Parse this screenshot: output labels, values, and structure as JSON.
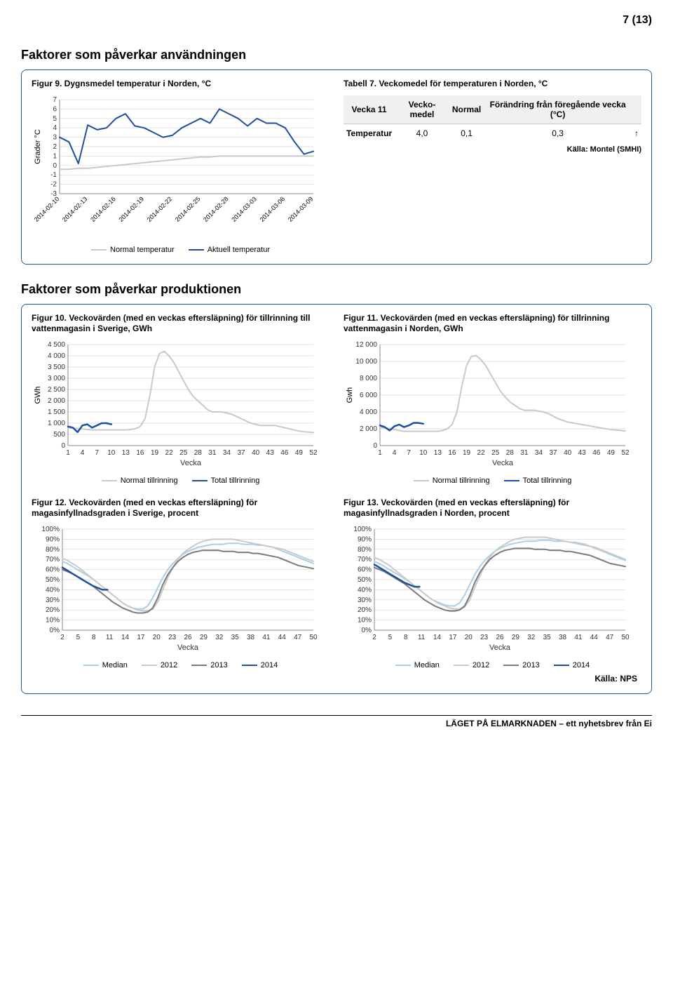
{
  "page_number": "7 (13)",
  "section1_title": "Faktorer som påverkar användningen",
  "section2_title": "Faktorer som påverkar produktionen",
  "footer": "LÄGET PÅ ELMARKNADEN – ett nyhetsbrev från Ei",
  "colors": {
    "panel_border": "#2a5c8a",
    "grey_light": "#c9c9c9",
    "grey_mid": "#9b9b9b",
    "grey_dark": "#7a7a7a",
    "blue_light": "#a9cfe8",
    "blue_dark": "#1f4e9c",
    "grid": "#d8d8d8",
    "axis": "#888888"
  },
  "fig9": {
    "title": "Figur 9. Dygnsmedel temperatur i Norden, °C",
    "type": "line",
    "ylabel": "Grader °C",
    "ylim": [
      -3,
      7
    ],
    "ytick_step": 1,
    "x_labels": [
      "2014-02-10",
      "2014-02-13",
      "2014-02-16",
      "2014-02-19",
      "2014-02-22",
      "2014-02-25",
      "2014-02-28",
      "2014-03-03",
      "2014-03-06",
      "2014-03-09"
    ],
    "series": [
      {
        "name": "Normal temperatur",
        "color": "#c9c9c9",
        "width": 2,
        "y": [
          -0.4,
          -0.4,
          -0.3,
          -0.3,
          -0.2,
          -0.1,
          0.0,
          0.1,
          0.2,
          0.3,
          0.4,
          0.5,
          0.6,
          0.7,
          0.8,
          0.9,
          0.9,
          1.0,
          1.0,
          1.0,
          1.0,
          1.0,
          1.0,
          1.0,
          1.0,
          1.0,
          1.0,
          1.0
        ]
      },
      {
        "name": "Aktuell temperatur",
        "color": "#1f4e9c",
        "width": 2,
        "y": [
          3.0,
          2.5,
          0.2,
          4.3,
          3.8,
          4.0,
          5.0,
          5.5,
          4.2,
          4.0,
          3.5,
          3.0,
          3.2,
          4.0,
          4.5,
          5.0,
          4.5,
          6.0,
          5.5,
          5.0,
          4.2,
          5.0,
          4.5,
          4.5,
          4.0,
          2.5,
          1.2,
          1.5
        ]
      }
    ],
    "legend": [
      "Normal temperatur",
      "Aktuell temperatur"
    ]
  },
  "tab7": {
    "title": "Tabell 7. Veckomedel för temperaturen i Norden, °C",
    "headers": [
      "Vecka 11",
      "Vecko-medel",
      "Normal",
      "Förändring från föregående vecka (°C)",
      ""
    ],
    "row_label": "Temperatur",
    "row": [
      "4,0",
      "0,1",
      "0,3",
      "↑"
    ],
    "source": "Källa: Montel (SMHI)"
  },
  "fig10": {
    "title": "Figur 10. Veckovärden (med en veckas eftersläpning) för tillrinning till vattenmagasin i Sverige, GWh",
    "type": "line",
    "ylabel": "GWh",
    "ylim": [
      0,
      4500
    ],
    "ytick_step": 500,
    "xlabel": "Vecka",
    "x_ticks": [
      1,
      4,
      7,
      10,
      13,
      16,
      19,
      22,
      25,
      28,
      31,
      34,
      37,
      40,
      43,
      46,
      49,
      52
    ],
    "series": [
      {
        "name": "Normal tillrinning",
        "color": "#c9c9c9",
        "width": 2,
        "y": [
          800,
          780,
          760,
          740,
          720,
          700,
          700,
          700,
          700,
          700,
          700,
          700,
          700,
          720,
          750,
          850,
          1200,
          2200,
          3500,
          4100,
          4200,
          4000,
          3700,
          3300,
          2900,
          2500,
          2200,
          2000,
          1800,
          1600,
          1500,
          1500,
          1500,
          1450,
          1400,
          1300,
          1200,
          1100,
          1000,
          950,
          900,
          900,
          900,
          900,
          850,
          800,
          750,
          700,
          650,
          620,
          600,
          580
        ]
      },
      {
        "name": "Total tillrinning",
        "color": "#1f4e9c",
        "width": 2.5,
        "y": [
          850,
          800,
          600,
          900,
          950,
          800,
          900,
          1000,
          1000,
          950
        ]
      }
    ],
    "legend": [
      "Normal tillrinning",
      "Total tillrinning"
    ]
  },
  "fig11": {
    "title": "Figur 11. Veckovärden (med en veckas eftersläpning) för tillrinning vattenmagasin i Norden, GWh",
    "type": "line",
    "ylabel": "Gwh",
    "ylim": [
      0,
      12000
    ],
    "ytick_step": 2000,
    "xlabel": "Vecka",
    "x_ticks": [
      1,
      4,
      7,
      10,
      13,
      16,
      19,
      22,
      25,
      28,
      31,
      34,
      37,
      40,
      43,
      46,
      49,
      52
    ],
    "series": [
      {
        "name": "Normal tillrinning",
        "color": "#c9c9c9",
        "width": 2,
        "y": [
          2200,
          2100,
          2000,
          1900,
          1800,
          1700,
          1700,
          1700,
          1700,
          1700,
          1700,
          1700,
          1700,
          1800,
          2000,
          2500,
          4000,
          7000,
          9500,
          10600,
          10700,
          10200,
          9500,
          8500,
          7500,
          6500,
          5800,
          5200,
          4800,
          4400,
          4200,
          4200,
          4200,
          4100,
          4000,
          3800,
          3500,
          3200,
          3000,
          2800,
          2700,
          2600,
          2500,
          2400,
          2300,
          2200,
          2100,
          2000,
          1900,
          1850,
          1800,
          1750
        ]
      },
      {
        "name": "Total tillrinning",
        "color": "#1f4e9c",
        "width": 2.5,
        "y": [
          2400,
          2200,
          1800,
          2300,
          2500,
          2200,
          2400,
          2700,
          2700,
          2600
        ]
      }
    ],
    "legend": [
      "Normal tillrinning",
      "Total tillrinning"
    ]
  },
  "fig12": {
    "title": "Figur 12. Veckovärden (med en veckas eftersläpning) för magasinfyllnadsgraden i Sverige, procent",
    "type": "line",
    "ylim": [
      0,
      100
    ],
    "ytick_step": 10,
    "ytick_suffix": "%",
    "xlabel": "Vecka",
    "x_ticks": [
      2,
      5,
      8,
      11,
      14,
      17,
      20,
      23,
      26,
      29,
      32,
      35,
      38,
      41,
      44,
      47,
      50
    ],
    "series": [
      {
        "name": "Median",
        "color": "#a9cfe8",
        "width": 2,
        "y": [
          68,
          66,
          63,
          60,
          57,
          54,
          51,
          47,
          43,
          39,
          35,
          31,
          27,
          24,
          22,
          21,
          21,
          24,
          32,
          42,
          52,
          60,
          66,
          71,
          75,
          78,
          80,
          82,
          83,
          84,
          85,
          85,
          85,
          86,
          86,
          86,
          85,
          85,
          85,
          84,
          84,
          83,
          82,
          80,
          78,
          76,
          74,
          72,
          70,
          68,
          66
        ]
      },
      {
        "name": "2012",
        "color": "#c9c9c9",
        "width": 2,
        "y": [
          71,
          69,
          66,
          63,
          59,
          55,
          51,
          47,
          43,
          39,
          35,
          31,
          27,
          24,
          22,
          20,
          19,
          19,
          21,
          28,
          40,
          52,
          62,
          70,
          76,
          80,
          83,
          86,
          88,
          89,
          90,
          90,
          90,
          90,
          90,
          89,
          88,
          87,
          86,
          85,
          84,
          83,
          82,
          81,
          80,
          78,
          76,
          74,
          72,
          70,
          68
        ]
      },
      {
        "name": "2013",
        "color": "#7a7a7a",
        "width": 2,
        "y": [
          60,
          58,
          56,
          53,
          50,
          47,
          44,
          40,
          36,
          32,
          28,
          25,
          22,
          20,
          18,
          17,
          17,
          18,
          22,
          32,
          45,
          55,
          62,
          68,
          72,
          75,
          77,
          78,
          79,
          79,
          79,
          79,
          78,
          78,
          78,
          77,
          77,
          77,
          76,
          76,
          75,
          74,
          73,
          72,
          70,
          68,
          66,
          64,
          63,
          62,
          61
        ]
      },
      {
        "name": "2014",
        "color": "#1f4e9c",
        "width": 2.5,
        "y": [
          62,
          59,
          56,
          53,
          50,
          47,
          44,
          42,
          40,
          40
        ]
      }
    ],
    "legend": [
      "Median",
      "2012",
      "2013",
      "2014"
    ]
  },
  "fig13": {
    "title": "Figur 13. Veckovärden (med en veckas eftersläpning) för magasinfyllnadsgraden i Norden, procent",
    "type": "line",
    "ylim": [
      0,
      100
    ],
    "ytick_step": 10,
    "ytick_suffix": "%",
    "xlabel": "Vecka",
    "x_ticks": [
      2,
      5,
      8,
      11,
      14,
      17,
      20,
      23,
      26,
      29,
      32,
      35,
      38,
      41,
      44,
      47,
      50
    ],
    "series": [
      {
        "name": "Median",
        "color": "#a9cfe8",
        "width": 2,
        "y": [
          68,
          66,
          63,
          60,
          57,
          54,
          51,
          48,
          44,
          40,
          36,
          32,
          29,
          27,
          25,
          24,
          24,
          27,
          35,
          45,
          55,
          63,
          69,
          74,
          78,
          81,
          83,
          85,
          86,
          87,
          88,
          88,
          88,
          89,
          89,
          89,
          88,
          88,
          88,
          87,
          87,
          86,
          85,
          83,
          81,
          79,
          77,
          75,
          73,
          71,
          69
        ]
      },
      {
        "name": "2012",
        "color": "#c9c9c9",
        "width": 2,
        "y": [
          72,
          70,
          67,
          64,
          60,
          56,
          52,
          48,
          44,
          40,
          36,
          32,
          29,
          26,
          24,
          22,
          21,
          21,
          23,
          30,
          42,
          54,
          64,
          72,
          78,
          82,
          85,
          88,
          90,
          91,
          92,
          92,
          92,
          92,
          92,
          91,
          90,
          89,
          88,
          87,
          86,
          85,
          84,
          83,
          82,
          80,
          78,
          76,
          74,
          72,
          70
        ]
      },
      {
        "name": "2013",
        "color": "#7a7a7a",
        "width": 2,
        "y": [
          62,
          60,
          58,
          55,
          52,
          49,
          46,
          42,
          38,
          34,
          30,
          27,
          24,
          22,
          20,
          19,
          19,
          20,
          24,
          34,
          47,
          57,
          64,
          70,
          74,
          77,
          79,
          80,
          81,
          81,
          81,
          81,
          80,
          80,
          80,
          79,
          79,
          79,
          78,
          78,
          77,
          76,
          75,
          74,
          72,
          70,
          68,
          66,
          65,
          64,
          63
        ]
      },
      {
        "name": "2014",
        "color": "#1f4e9c",
        "width": 2.5,
        "y": [
          65,
          62,
          59,
          56,
          53,
          50,
          47,
          45,
          43,
          43
        ]
      }
    ],
    "legend": [
      "Median",
      "2012",
      "2013",
      "2014"
    ],
    "source": "Källa: NPS"
  }
}
